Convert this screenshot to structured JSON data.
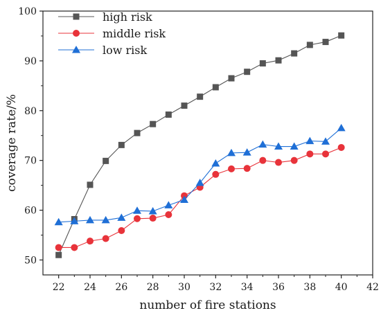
{
  "chart_data": {
    "type": "line",
    "title": "",
    "xlabel": "number of fire stations",
    "ylabel": "coverage rate/%",
    "xlim": [
      21,
      42
    ],
    "ylim": [
      47,
      100
    ],
    "xticks": [
      22,
      24,
      26,
      28,
      30,
      32,
      34,
      36,
      38,
      40,
      42
    ],
    "yticks": [
      50,
      60,
      70,
      80,
      90,
      100
    ],
    "grid": false,
    "legend_position": "top-left",
    "x": [
      22,
      23,
      24,
      25,
      26,
      27,
      28,
      29,
      30,
      31,
      32,
      33,
      34,
      35,
      36,
      37,
      38,
      39,
      40
    ],
    "series": [
      {
        "name": "high risk",
        "marker": "square",
        "color": "#555555",
        "values": [
          51.0,
          58.2,
          65.1,
          69.9,
          73.1,
          75.5,
          77.3,
          79.2,
          81.0,
          82.8,
          84.7,
          86.5,
          87.8,
          89.5,
          90.1,
          91.5,
          93.2,
          93.8,
          95.1
        ]
      },
      {
        "name": "middle risk",
        "marker": "circle",
        "color": "#e8333a",
        "values": [
          52.5,
          52.5,
          53.8,
          54.3,
          55.9,
          58.3,
          58.4,
          59.1,
          62.9,
          64.6,
          67.2,
          68.3,
          68.4,
          70.0,
          69.6,
          70.0,
          71.3,
          71.3,
          72.6
        ]
      },
      {
        "name": "low risk",
        "marker": "triangle",
        "color": "#1f6fd6",
        "values": [
          57.6,
          57.8,
          58.0,
          58.0,
          58.5,
          59.9,
          59.8,
          61.0,
          62.1,
          65.5,
          69.4,
          71.5,
          71.6,
          73.2,
          72.8,
          72.8,
          73.9,
          73.8,
          76.5
        ]
      }
    ]
  }
}
